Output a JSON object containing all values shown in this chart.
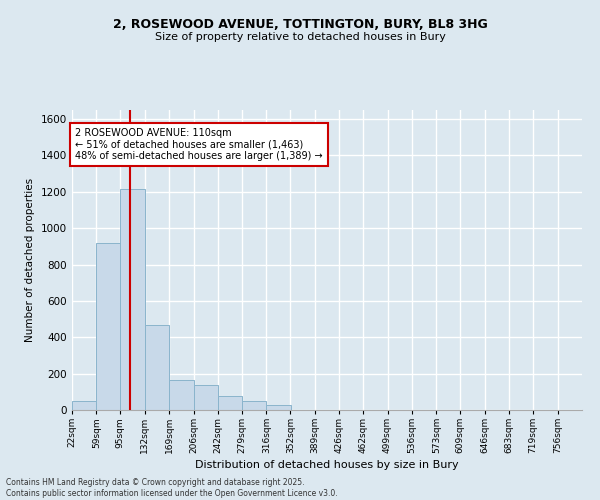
{
  "title_line1": "2, ROSEWOOD AVENUE, TOTTINGTON, BURY, BL8 3HG",
  "title_line2": "Size of property relative to detached houses in Bury",
  "xlabel": "Distribution of detached houses by size in Bury",
  "ylabel": "Number of detached properties",
  "background_color": "#dce8f0",
  "bar_color": "#c8d9e9",
  "bar_edge_color": "#8ab4cc",
  "grid_color": "#ffffff",
  "annotation_text": "2 ROSEWOOD AVENUE: 110sqm\n← 51% of detached houses are smaller (1,463)\n48% of semi-detached houses are larger (1,389) →",
  "annotation_box_color": "#ffffff",
  "annotation_box_edge_color": "#cc0000",
  "vline_color": "#cc0000",
  "vline_x_data": 110,
  "categories": [
    "22sqm",
    "59sqm",
    "95sqm",
    "132sqm",
    "169sqm",
    "206sqm",
    "242sqm",
    "279sqm",
    "316sqm",
    "352sqm",
    "389sqm",
    "426sqm",
    "462sqm",
    "499sqm",
    "536sqm",
    "573sqm",
    "609sqm",
    "646sqm",
    "683sqm",
    "719sqm",
    "756sqm"
  ],
  "bin_left_edges": [
    22,
    59,
    95,
    132,
    169,
    206,
    242,
    279,
    316,
    352,
    389,
    426,
    462,
    499,
    536,
    573,
    609,
    646,
    683,
    719,
    756
  ],
  "bin_width": 37,
  "values": [
    50,
    920,
    1215,
    470,
    165,
    140,
    75,
    50,
    30,
    0,
    0,
    0,
    0,
    0,
    0,
    0,
    0,
    0,
    0,
    0,
    0
  ],
  "ylim": [
    0,
    1650
  ],
  "yticks": [
    0,
    200,
    400,
    600,
    800,
    1000,
    1200,
    1400,
    1600
  ],
  "footnote": "Contains HM Land Registry data © Crown copyright and database right 2025.\nContains public sector information licensed under the Open Government Licence v3.0."
}
